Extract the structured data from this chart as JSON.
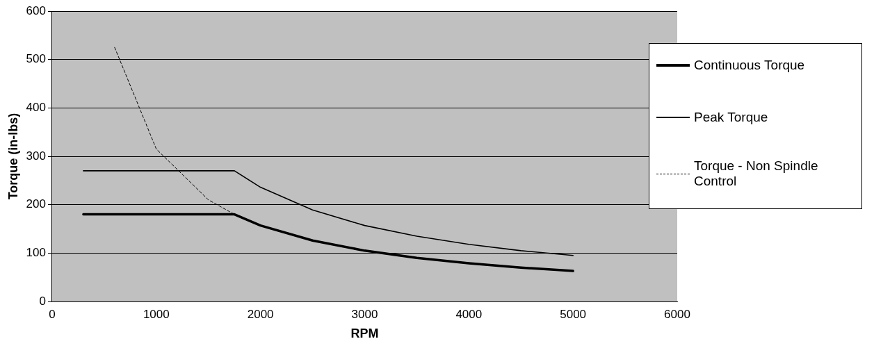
{
  "chart_data": {
    "type": "line",
    "xlabel": "RPM",
    "ylabel": "Torque (in-lbs)",
    "xlim": [
      0,
      6000
    ],
    "xticks": [
      0,
      1000,
      2000,
      3000,
      4000,
      5000,
      6000
    ],
    "ylim": [
      0,
      600
    ],
    "yticks": [
      0,
      100,
      200,
      300,
      400,
      500,
      600
    ],
    "grid": "y",
    "legend": "right",
    "marker": "none",
    "series": [
      {
        "name": "Continuous Torque",
        "color": "#000000",
        "line_style": "solid",
        "x": [
          300,
          1750,
          2000,
          2500,
          3000,
          3500,
          4000,
          4500,
          5000
        ],
        "values": [
          180,
          180,
          157,
          126,
          105,
          90,
          79,
          70,
          63
        ]
      },
      {
        "name": "Peak Torque",
        "color": "#000000",
        "line_style": "solid",
        "x": [
          300,
          1750,
          2000,
          2500,
          3000,
          3500,
          4000,
          4500,
          5000
        ],
        "values": [
          270,
          270,
          236,
          189,
          157,
          135,
          118,
          105,
          95
        ]
      },
      {
        "name": "Torque - Non Spindle Control",
        "color": "#000000",
        "line_style": "dashed",
        "x": [
          600,
          1000,
          1500,
          1750
        ],
        "values": [
          525,
          315,
          210,
          180
        ]
      }
    ]
  }
}
